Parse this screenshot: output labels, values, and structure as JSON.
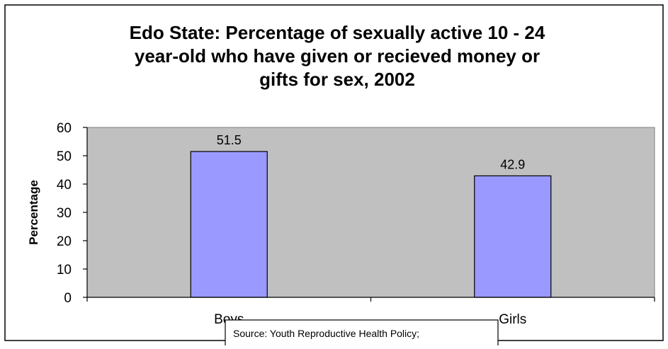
{
  "chart_data": {
    "type": "bar",
    "title_lines": [
      "Edo State: Percentage of sexually active 10 - 24",
      "year-old who have given or recieved money or",
      "gifts for sex, 2002"
    ],
    "categories": [
      "Boys",
      "Girls"
    ],
    "values": [
      51.5,
      42.9
    ],
    "data_labels": [
      "51.5",
      "42.9"
    ],
    "ylabel": "Percentage",
    "xlabel": "",
    "ylim": [
      0,
      60
    ],
    "yticks": [
      0,
      10,
      20,
      30,
      40,
      50,
      60
    ],
    "grid": false,
    "legend": "none",
    "source_note": "Source: Youth Reproductive Health Policy;",
    "colors": {
      "bar_fill": "#9999ff",
      "plot_background": "#c0c0c0",
      "axis": "#000000",
      "page_background": "#ffffff"
    }
  }
}
